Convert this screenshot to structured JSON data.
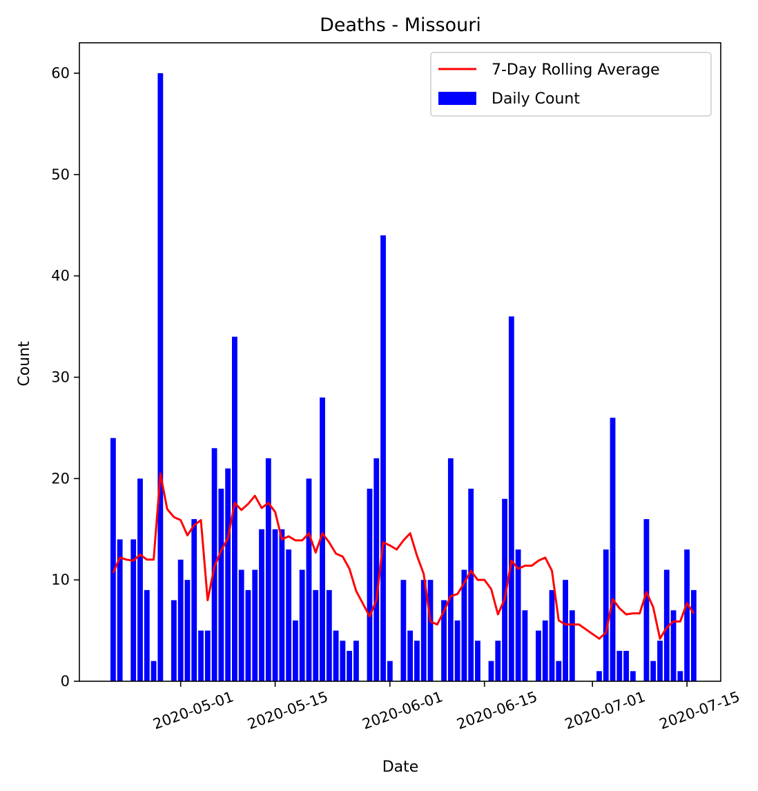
{
  "chart_data": {
    "type": "bar",
    "title": "Deaths - Missouri",
    "xlabel": "Date",
    "ylabel": "Count",
    "ylim": [
      0,
      63
    ],
    "x_date_range": [
      "2020-04-16",
      "2020-07-20"
    ],
    "x_tick_labels": [
      "2020-05-01",
      "2020-05-15",
      "2020-06-01",
      "2020-06-15",
      "2020-07-01",
      "2020-07-15"
    ],
    "y_ticks": [
      0,
      10,
      20,
      30,
      40,
      50,
      60
    ],
    "legend": {
      "placement": "top-right",
      "entries": [
        "7-Day Rolling Average",
        "Daily Count"
      ]
    },
    "colors": {
      "bars": "#0000ff",
      "line": "#ff0000"
    },
    "grid": false,
    "series": [
      {
        "name": "Daily Count",
        "type": "bar",
        "start_date": "2020-04-21",
        "values": [
          24,
          14,
          0,
          14,
          20,
          9,
          2,
          60,
          0,
          8,
          12,
          10,
          16,
          5,
          5,
          23,
          19,
          21,
          34,
          11,
          9,
          11,
          15,
          22,
          15,
          15,
          13,
          6,
          11,
          20,
          9,
          28,
          9,
          5,
          4,
          3,
          4,
          0,
          19,
          22,
          44,
          2,
          0,
          10,
          5,
          4,
          10,
          10,
          0,
          8,
          22,
          6,
          11,
          19,
          4,
          0,
          2,
          4,
          18,
          36,
          13,
          7,
          0,
          5,
          6,
          9,
          2,
          10,
          7,
          0,
          0,
          0,
          1,
          13,
          26,
          3,
          3,
          1,
          0,
          16,
          2,
          4,
          11,
          7,
          1,
          13,
          9
        ]
      },
      {
        "name": "7-Day Rolling Average",
        "type": "line",
        "points": [
          [
            "2020-04-21",
            10.7
          ],
          [
            "2020-04-22",
            12.2
          ],
          [
            "2020-04-23",
            12.0
          ],
          [
            "2020-04-24",
            11.9
          ],
          [
            "2020-04-25",
            12.5
          ],
          [
            "2020-04-26",
            12.0
          ],
          [
            "2020-04-27",
            12.0
          ],
          [
            "2020-04-28",
            20.5
          ],
          [
            "2020-04-29",
            17.0
          ],
          [
            "2020-04-30",
            16.2
          ],
          [
            "2020-05-01",
            15.9
          ],
          [
            "2020-05-02",
            14.4
          ],
          [
            "2020-05-03",
            15.4
          ],
          [
            "2020-05-04",
            15.9
          ],
          [
            "2020-05-05",
            8.0
          ],
          [
            "2020-05-06",
            11.3
          ],
          [
            "2020-05-07",
            12.9
          ],
          [
            "2020-05-08",
            14.1
          ],
          [
            "2020-05-09",
            17.6
          ],
          [
            "2020-05-10",
            16.9
          ],
          [
            "2020-05-11",
            17.5
          ],
          [
            "2020-05-12",
            18.3
          ],
          [
            "2020-05-13",
            17.1
          ],
          [
            "2020-05-14",
            17.6
          ],
          [
            "2020-05-15",
            16.7
          ],
          [
            "2020-05-16",
            14.0
          ],
          [
            "2020-05-17",
            14.3
          ],
          [
            "2020-05-18",
            13.9
          ],
          [
            "2020-05-19",
            13.9
          ],
          [
            "2020-05-20",
            14.6
          ],
          [
            "2020-05-21",
            12.7
          ],
          [
            "2020-05-22",
            14.6
          ],
          [
            "2020-05-23",
            13.7
          ],
          [
            "2020-05-24",
            12.6
          ],
          [
            "2020-05-25",
            12.3
          ],
          [
            "2020-05-26",
            11.1
          ],
          [
            "2020-05-27",
            8.9
          ],
          [
            "2020-05-29",
            6.4
          ],
          [
            "2020-05-30",
            8.0
          ],
          [
            "2020-05-31",
            13.7
          ],
          [
            "2020-06-01",
            13.4
          ],
          [
            "2020-06-02",
            13.0
          ],
          [
            "2020-06-03",
            13.9
          ],
          [
            "2020-06-04",
            14.6
          ],
          [
            "2020-06-05",
            12.4
          ],
          [
            "2020-06-06",
            10.6
          ],
          [
            "2020-06-07",
            5.9
          ],
          [
            "2020-06-08",
            5.6
          ],
          [
            "2020-06-09",
            6.9
          ],
          [
            "2020-06-10",
            8.4
          ],
          [
            "2020-06-11",
            8.6
          ],
          [
            "2020-06-12",
            9.7
          ],
          [
            "2020-06-13",
            10.9
          ],
          [
            "2020-06-14",
            10.0
          ],
          [
            "2020-06-15",
            10.0
          ],
          [
            "2020-06-16",
            9.1
          ],
          [
            "2020-06-17",
            6.6
          ],
          [
            "2020-06-18",
            8.1
          ],
          [
            "2020-06-19",
            11.9
          ],
          [
            "2020-06-20",
            11.1
          ],
          [
            "2020-06-21",
            11.4
          ],
          [
            "2020-06-22",
            11.4
          ],
          [
            "2020-06-23",
            11.9
          ],
          [
            "2020-06-24",
            12.2
          ],
          [
            "2020-06-25",
            10.9
          ],
          [
            "2020-06-26",
            6.0
          ],
          [
            "2020-06-27",
            5.6
          ],
          [
            "2020-06-28",
            5.6
          ],
          [
            "2020-06-29",
            5.6
          ],
          [
            "2020-07-02",
            4.2
          ],
          [
            "2020-07-03",
            4.8
          ],
          [
            "2020-07-04",
            8.1
          ],
          [
            "2020-07-05",
            7.2
          ],
          [
            "2020-07-06",
            6.6
          ],
          [
            "2020-07-07",
            6.7
          ],
          [
            "2020-07-08",
            6.7
          ],
          [
            "2020-07-09",
            8.8
          ],
          [
            "2020-07-10",
            7.3
          ],
          [
            "2020-07-11",
            4.2
          ],
          [
            "2020-07-12",
            5.3
          ],
          [
            "2020-07-13",
            5.9
          ],
          [
            "2020-07-14",
            5.9
          ],
          [
            "2020-07-15",
            7.7
          ],
          [
            "2020-07-16",
            6.7
          ]
        ]
      }
    ]
  }
}
